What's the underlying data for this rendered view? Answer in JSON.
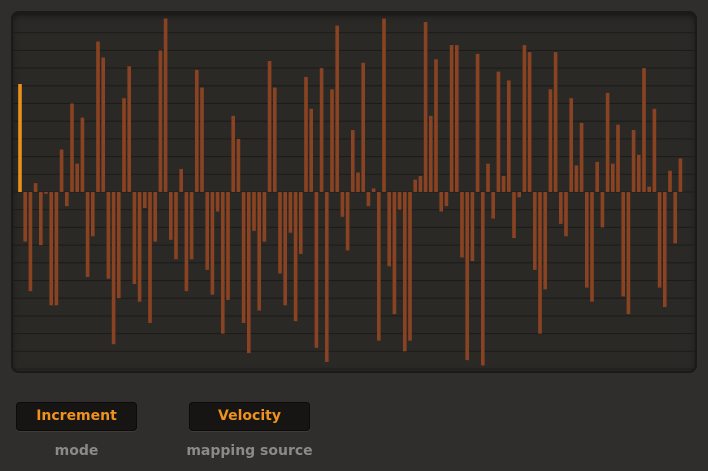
{
  "sequencer": {
    "selected_index": 0,
    "colors": {
      "bar": "#8a4322",
      "selected_bar": "#e8901c",
      "grid": "#1d1b19",
      "background": "#2b2926"
    },
    "range": [
      -1,
      1
    ],
    "grid_step": 0.1,
    "values": [
      0.61,
      -0.28,
      -0.56,
      0.05,
      -0.3,
      -0.01,
      -0.64,
      -0.64,
      0.24,
      -0.08,
      0.5,
      0.16,
      0.42,
      -0.48,
      -0.25,
      0.85,
      0.76,
      -0.49,
      -0.86,
      -0.6,
      0.53,
      0.71,
      -0.52,
      -0.62,
      -0.09,
      -0.74,
      -0.28,
      0.8,
      0.98,
      -0.27,
      -0.38,
      0.13,
      -0.56,
      -0.38,
      0.69,
      0.59,
      -0.44,
      -0.58,
      -0.11,
      -0.8,
      -0.61,
      0.43,
      0.3,
      -0.74,
      -0.91,
      -0.22,
      -0.67,
      -0.28,
      0.74,
      0.59,
      -0.46,
      -0.64,
      -0.23,
      -0.73,
      -0.35,
      0.65,
      0.47,
      -0.88,
      0.7,
      -0.96,
      0.58,
      0.94,
      -0.14,
      -0.33,
      0.35,
      0.11,
      0.73,
      -0.08,
      0.02,
      -0.84,
      0.98,
      -0.42,
      -0.69,
      -0.1,
      -0.9,
      -0.84,
      0.07,
      0.09,
      0.96,
      0.43,
      0.75,
      -0.11,
      -0.08,
      0.83,
      0.83,
      -0.37,
      -0.95,
      -0.39,
      0.78,
      -0.98,
      0.16,
      -0.15,
      0.68,
      0.09,
      0.63,
      -0.26,
      -0.03,
      0.83,
      0.79,
      -0.44,
      -0.8,
      -0.55,
      0.58,
      0.79,
      -0.18,
      -0.25,
      0.53,
      0.15,
      0.39,
      -0.54,
      -0.62,
      0.17,
      -0.2,
      0.56,
      0.16,
      0.38,
      -0.59,
      -0.69,
      0.35,
      0.21,
      0.7,
      0.03,
      0.47,
      -0.54,
      -0.65,
      0.12,
      -0.29,
      0.19
    ]
  },
  "controls": {
    "mode": {
      "value": "Increment",
      "label": "mode"
    },
    "mapping_source": {
      "value": "Velocity",
      "label": "mapping source"
    }
  }
}
